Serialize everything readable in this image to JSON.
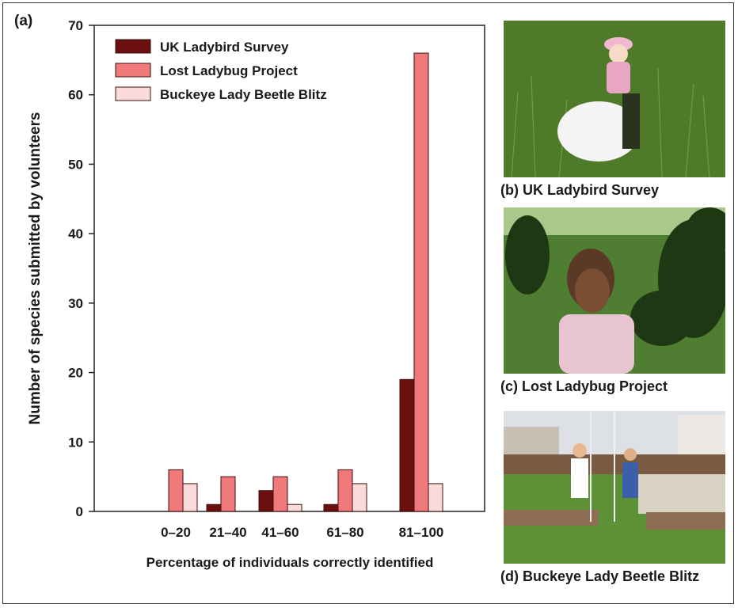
{
  "panel_label": "(a)",
  "captions": {
    "b": "(b) UK Ladybird Survey",
    "c": "(c) Lost Ladybug Project",
    "d": "(d) Buckeye Lady Beetle Blitz"
  },
  "colors": {
    "uk": "#6b0f0f",
    "lost": "#f07a7a",
    "buckeye": "#fbdada"
  },
  "chart_data": {
    "type": "bar",
    "categories": [
      "0–20",
      "21–40",
      "41–60",
      "61–80",
      "81–100"
    ],
    "series": [
      {
        "name": "UK Ladybird Survey",
        "values": [
          0,
          1,
          3,
          1,
          19
        ]
      },
      {
        "name": "Lost Ladybug Project",
        "values": [
          6,
          5,
          5,
          6,
          66
        ]
      },
      {
        "name": "Buckeye Lady Beetle Blitz",
        "values": [
          4,
          0,
          1,
          4,
          4
        ]
      }
    ],
    "xlabel": "Percentage of individuals correctly identified",
    "ylabel": "Number of species submitted by volunteers",
    "ylim": [
      0,
      70
    ],
    "yticks": [
      0,
      10,
      20,
      30,
      40,
      50,
      60,
      70
    ],
    "legend": "top-left",
    "grid": false
  }
}
